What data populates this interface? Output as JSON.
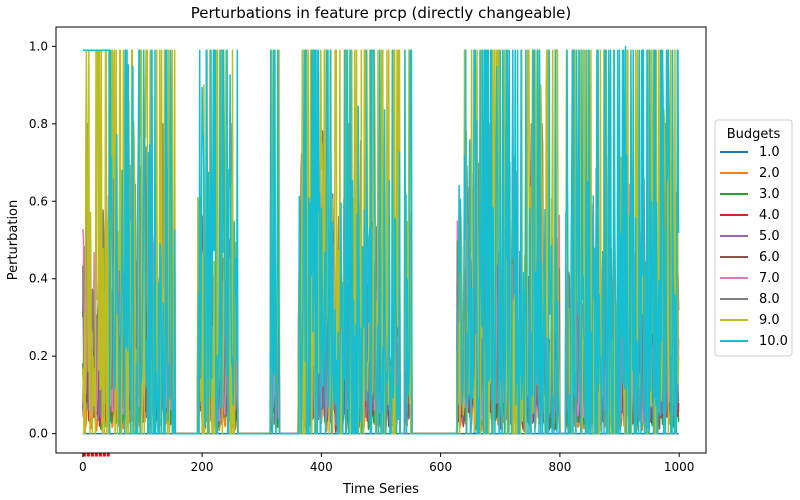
{
  "chart_data": {
    "type": "line",
    "title": "Perturbations in feature prcp (directly changeable)",
    "xlabel": "Time Series",
    "ylabel": "Perturbation",
    "xlim": [
      -45,
      1045
    ],
    "ylim": [
      -0.05,
      1.05
    ],
    "xticks": [
      0,
      200,
      400,
      600,
      800,
      1000
    ],
    "yticks": [
      0.0,
      0.2,
      0.4,
      0.6,
      0.8,
      1.0
    ],
    "xtick_labels": [
      "0",
      "200",
      "400",
      "600",
      "800",
      "1000"
    ],
    "ytick_labels": [
      "0.0",
      "0.2",
      "0.4",
      "0.6",
      "0.8",
      "1.0"
    ],
    "grid": false,
    "legend": {
      "title": "Budgets",
      "placement": "center-right outside"
    },
    "x_count": 1000,
    "active_segments": [
      [
        0,
        155
      ],
      [
        193,
        260
      ],
      [
        315,
        330
      ],
      [
        362,
        532
      ],
      [
        540,
        552
      ],
      [
        628,
        800
      ],
      [
        810,
        1000
      ]
    ],
    "highlight_range": [
      0,
      45
    ],
    "highlight_color": "#ff0000",
    "series": [
      {
        "name": "1.0",
        "budget": 1.0,
        "color": "#1f77b4"
      },
      {
        "name": "2.0",
        "budget": 2.0,
        "color": "#ff7f0e"
      },
      {
        "name": "3.0",
        "budget": 3.0,
        "color": "#2ca02c"
      },
      {
        "name": "4.0",
        "budget": 4.0,
        "color": "#d62728"
      },
      {
        "name": "5.0",
        "budget": 5.0,
        "color": "#9467bd"
      },
      {
        "name": "6.0",
        "budget": 6.0,
        "color": "#8c564b"
      },
      {
        "name": "7.0",
        "budget": 7.0,
        "color": "#e377c2"
      },
      {
        "name": "8.0",
        "budget": 8.0,
        "color": "#7f7f7f"
      },
      {
        "name": "9.0",
        "budget": 9.0,
        "color": "#bcbd22"
      },
      {
        "name": "10.0",
        "budget": 10.0,
        "color": "#17becf"
      }
    ]
  }
}
